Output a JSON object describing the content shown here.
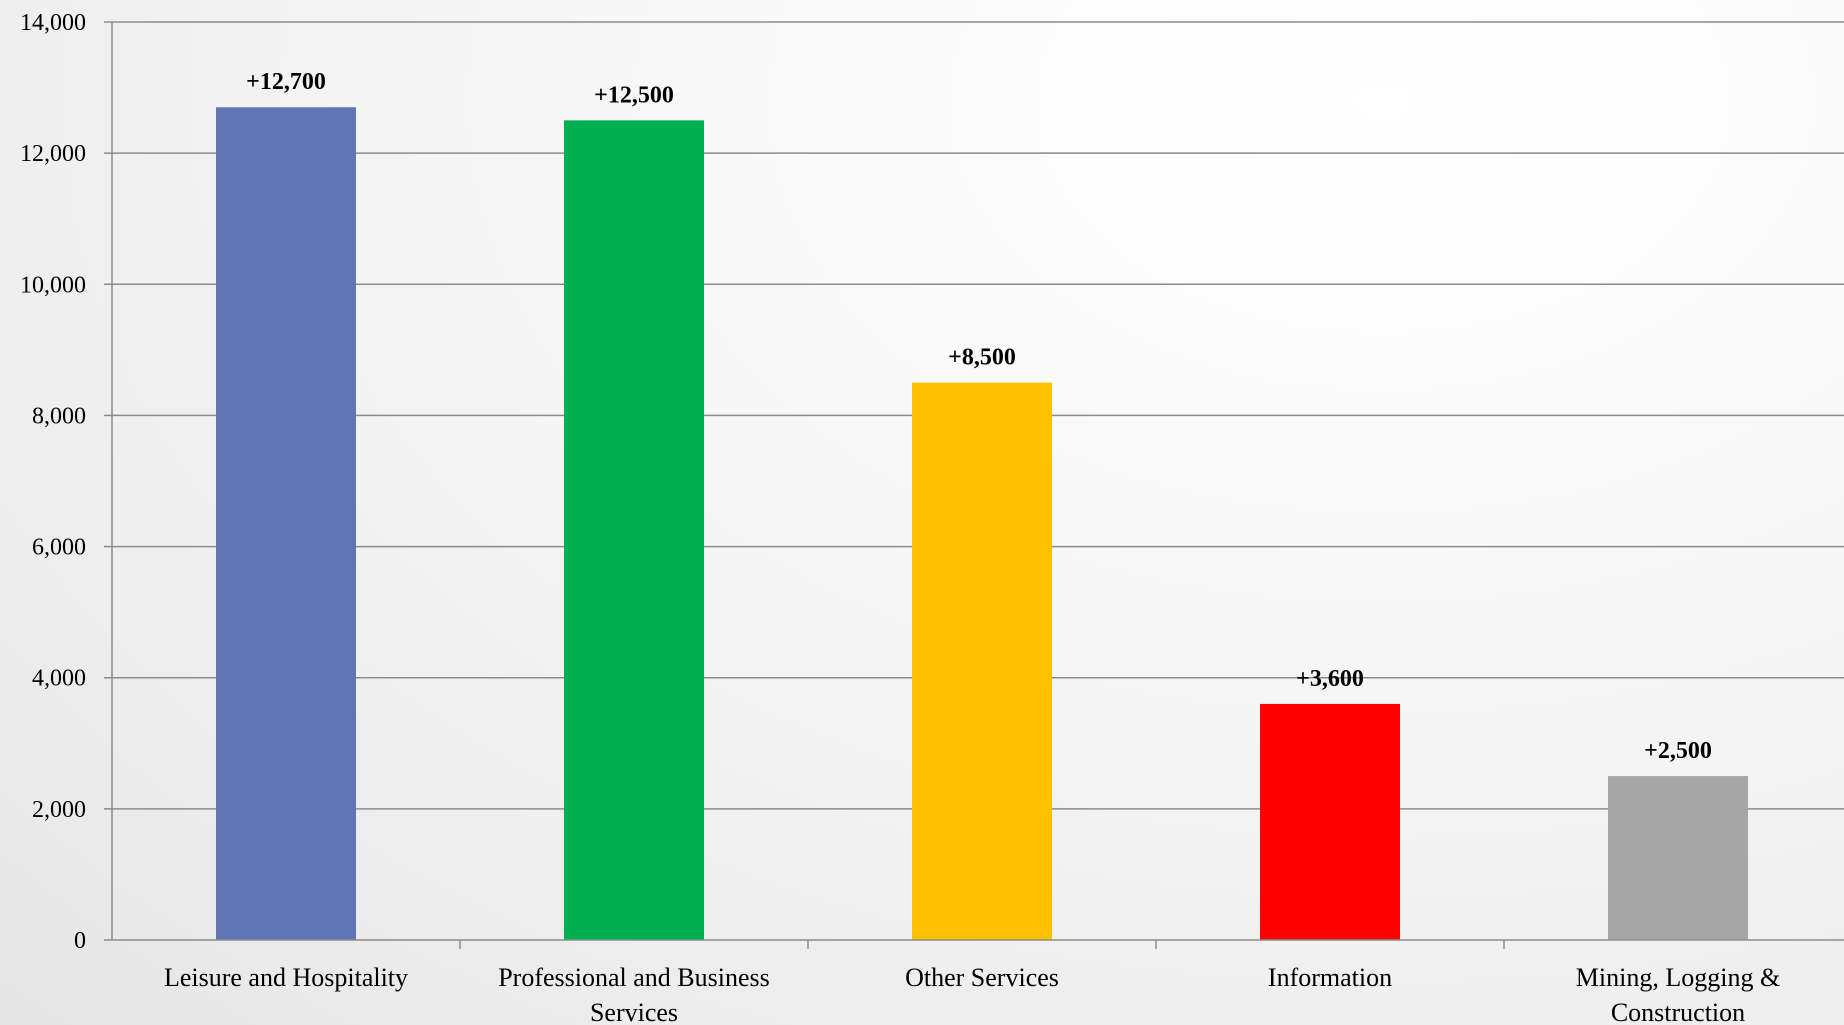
{
  "chart_data": {
    "type": "bar",
    "title": "",
    "xlabel": "",
    "ylabel": "",
    "categories": [
      "Leisure and Hospitality",
      "Professional and Business Services",
      "Other Services",
      "Information",
      "Mining, Logging & Construction"
    ],
    "category_lines": [
      [
        "Leisure and Hospitality"
      ],
      [
        "Professional and Business",
        "Services"
      ],
      [
        "Other Services"
      ],
      [
        "Information"
      ],
      [
        "Mining, Logging &",
        "Construction"
      ]
    ],
    "values": [
      12700,
      12500,
      8500,
      3600,
      2500
    ],
    "data_labels": [
      "+12,700",
      "+12,500",
      "+8,500",
      "+3,600",
      "+2,500"
    ],
    "colors": [
      "#6076b4",
      "#00b050",
      "#ffc000",
      "#ff0000",
      "#a6a6a6"
    ],
    "ylim": [
      0,
      14000
    ],
    "yticks": [
      0,
      2000,
      4000,
      6000,
      8000,
      10000,
      12000,
      14000
    ],
    "ytick_labels": [
      "0",
      "2,000",
      "4,000",
      "6,000",
      "8,000",
      "10,000",
      "12,000",
      "14,000"
    ],
    "grid": true,
    "legend": "none"
  }
}
